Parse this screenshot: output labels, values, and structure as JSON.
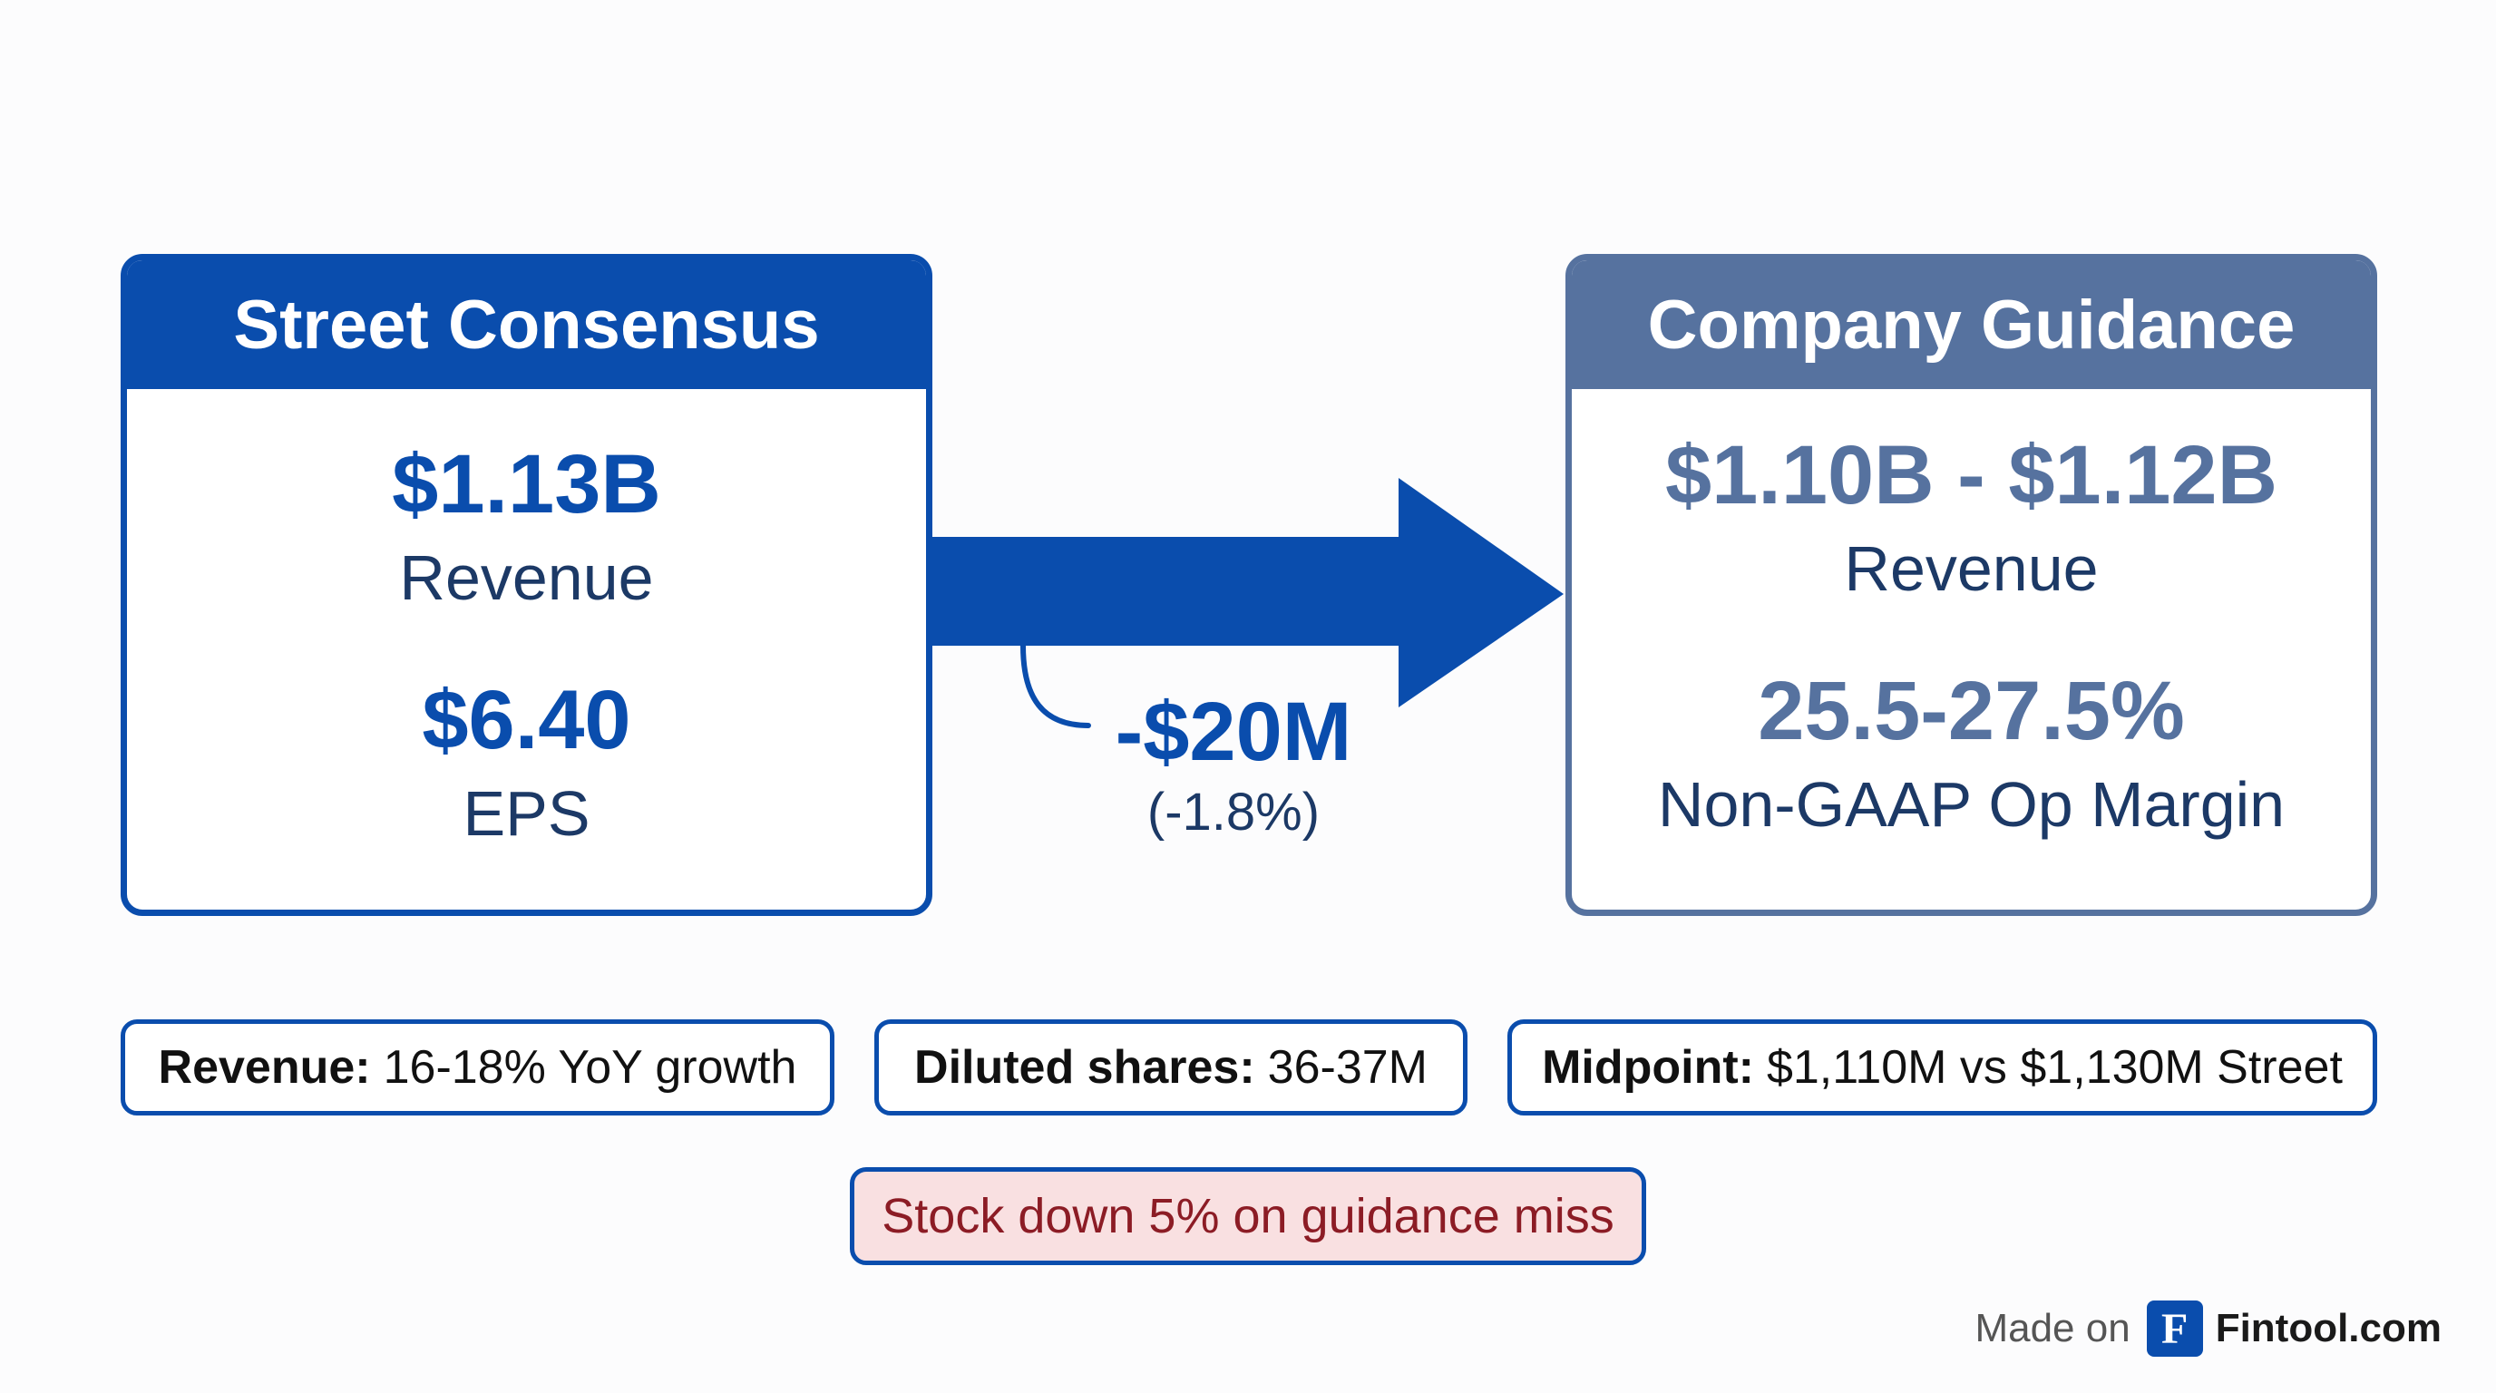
{
  "street": {
    "title": "Street Consensus",
    "metrics": [
      {
        "value": "$1.13B",
        "label": "Revenue"
      },
      {
        "value": "$6.40",
        "label": "EPS"
      }
    ]
  },
  "company": {
    "title": "Company Guidance",
    "metrics": [
      {
        "value": "$1.10B - $1.12B",
        "label": "Revenue"
      },
      {
        "value": "25.5-27.5%",
        "label": "Non-GAAP Op Margin"
      }
    ]
  },
  "delta": {
    "value": "-$20M",
    "percent": "(-1.8%)"
  },
  "notes": [
    {
      "label": "Revenue:",
      "text": "16-18% YoY growth"
    },
    {
      "label": "Diluted shares:",
      "text": "36-37M"
    },
    {
      "label": "Midpoint:",
      "text": "$1,110M vs $1,130M Street"
    }
  ],
  "alert": "Stock down 5% on guidance miss",
  "footer": {
    "made_on": "Made on",
    "logo_letter": "F",
    "brand": "Fintool.com"
  },
  "colors": {
    "street_blue": "#0a4dad",
    "company_slate": "#56729f",
    "alert_bg": "#f9e0e1",
    "alert_text": "#8c1c25"
  }
}
